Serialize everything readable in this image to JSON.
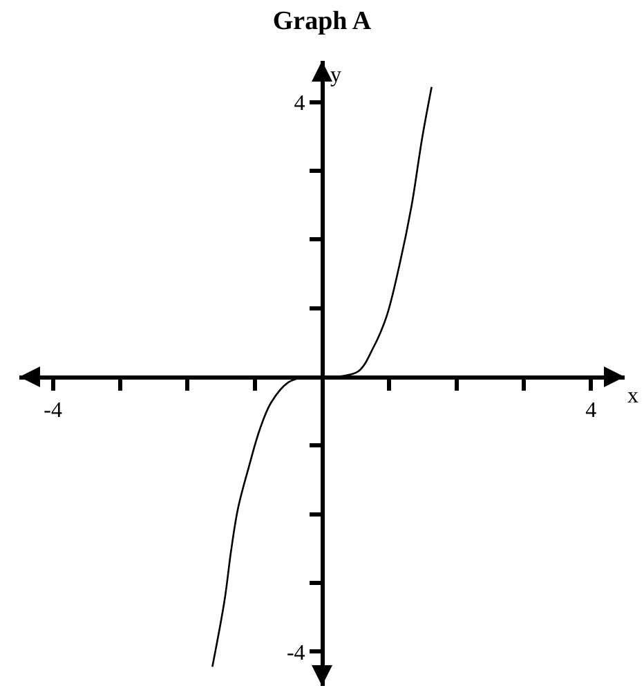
{
  "chart_data": {
    "type": "line",
    "title": "Graph A",
    "xlabel": "x",
    "ylabel": "y",
    "xlim": [
      -4.5,
      4.5
    ],
    "ylim": [
      -4.5,
      4.6
    ],
    "xticks": [
      -4,
      {
        "value": -3,
        "label": null
      },
      {
        "value": -2,
        "label": null
      },
      {
        "value": -1,
        "label": null
      },
      {
        "value": 1,
        "label": null
      },
      {
        "value": 2,
        "label": null
      },
      {
        "value": 3,
        "label": null
      },
      4
    ],
    "yticks": [
      -4,
      {
        "value": -3,
        "label": null
      },
      {
        "value": -2,
        "label": null
      },
      {
        "value": -1,
        "label": null
      },
      {
        "value": 1,
        "label": null
      },
      {
        "value": 2,
        "label": null
      },
      {
        "value": 3,
        "label": null
      },
      4
    ],
    "grid": false,
    "marker": "none",
    "line_style": "solid",
    "series": [
      {
        "color": "#000000",
        "x": [
          -1.63,
          -1.45,
          -1.35,
          -1.25,
          -1.09,
          -0.93,
          -0.76,
          -0.5,
          -0.24,
          0,
          0.2,
          0.54,
          0.76,
          0.96,
          1.15,
          1.33,
          1.49,
          1.63
        ],
        "values": [
          -4.22,
          -3.26,
          -2.52,
          -1.92,
          -1.32,
          -0.78,
          -0.38,
          -0.08,
          0,
          0,
          0,
          0.08,
          0.42,
          0.88,
          1.62,
          2.48,
          3.48,
          4.22
        ]
      }
    ]
  }
}
